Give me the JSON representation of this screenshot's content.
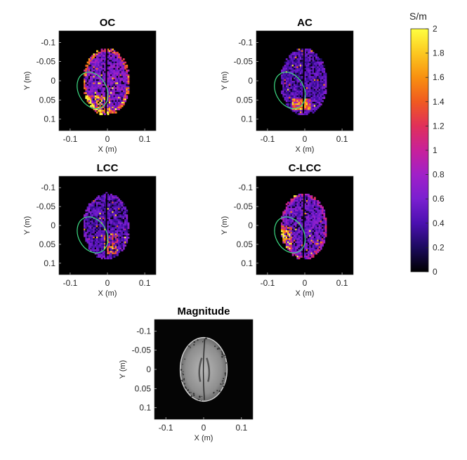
{
  "chart_data": [
    {
      "type": "heatmap",
      "title": "OC",
      "xlabel": "X (m)",
      "ylabel": "Y (m)",
      "xlim": [
        -0.13,
        0.13
      ],
      "ylim": [
        0.13,
        -0.13
      ],
      "xticks": [
        -0.1,
        0,
        0.1
      ],
      "xtick_labels": [
        "-0.1",
        "0",
        "0.1"
      ],
      "yticks": [
        -0.1,
        -0.05,
        0,
        0.05,
        0.1
      ],
      "ytick_labels": [
        "-0.1",
        "-0.05",
        "0",
        "0.05",
        "0.1"
      ],
      "colormap": "conductivity",
      "clim": [
        0,
        2
      ],
      "has_roi_ellipse": true,
      "roi_color": "#3ddc84",
      "seed": 11,
      "mean_level": 0.62,
      "edge_boost": 0.9,
      "hot_region": "roi-lower"
    },
    {
      "type": "heatmap",
      "title": "AC",
      "xlabel": "X (m)",
      "ylabel": "Y (m)",
      "xlim": [
        -0.13,
        0.13
      ],
      "ylim": [
        0.13,
        -0.13
      ],
      "xticks": [
        -0.1,
        0,
        0.1
      ],
      "xtick_labels": [
        "-0.1",
        "0",
        "0.1"
      ],
      "yticks": [
        -0.1,
        -0.05,
        0,
        0.05,
        0.1
      ],
      "ytick_labels": [
        "-0.1",
        "-0.05",
        "0",
        "0.05",
        "0.1"
      ],
      "colormap": "conductivity",
      "clim": [
        0,
        2
      ],
      "has_roi_ellipse": true,
      "roi_color": "#3ddc84",
      "seed": 23,
      "mean_level": 0.45,
      "edge_boost": 0.1,
      "hot_region": "center-bottom"
    },
    {
      "type": "heatmap",
      "title": "LCC",
      "xlabel": "X (m)",
      "ylabel": "Y (m)",
      "xlim": [
        -0.13,
        0.13
      ],
      "ylim": [
        0.13,
        -0.13
      ],
      "xticks": [
        -0.1,
        0,
        0.1
      ],
      "xtick_labels": [
        "-0.1",
        "0",
        "0.1"
      ],
      "yticks": [
        -0.1,
        -0.05,
        0,
        0.05,
        0.1
      ],
      "ytick_labels": [
        "-0.1",
        "-0.05",
        "0",
        "0.05",
        "0.1"
      ],
      "colormap": "conductivity",
      "clim": [
        0,
        2
      ],
      "has_roi_ellipse": true,
      "roi_color": "#3ddc84",
      "seed": 37,
      "mean_level": 0.45,
      "edge_boost": 0.15,
      "hot_region": "roi-right"
    },
    {
      "type": "heatmap",
      "title": "C-LCC",
      "xlabel": "X (m)",
      "ylabel": "Y (m)",
      "xlim": [
        -0.13,
        0.13
      ],
      "ylim": [
        0.13,
        -0.13
      ],
      "xticks": [
        -0.1,
        0,
        0.1
      ],
      "xtick_labels": [
        "-0.1",
        "0",
        "0.1"
      ],
      "yticks": [
        -0.1,
        -0.05,
        0,
        0.05,
        0.1
      ],
      "ytick_labels": [
        "-0.1",
        "-0.05",
        "0",
        "0.05",
        "0.1"
      ],
      "colormap": "conductivity",
      "clim": [
        0,
        2
      ],
      "has_roi_ellipse": true,
      "roi_color": "#3ddc84",
      "seed": 53,
      "mean_level": 0.55,
      "edge_boost": 0.45,
      "hot_region": "roi-left"
    },
    {
      "type": "heatmap",
      "title": "Magnitude",
      "xlabel": "X (m)",
      "ylabel": "Y (m)",
      "xlim": [
        -0.13,
        0.13
      ],
      "ylim": [
        0.13,
        -0.13
      ],
      "xticks": [
        -0.1,
        0,
        0.1
      ],
      "xtick_labels": [
        "-0.1",
        "0",
        "0.1"
      ],
      "yticks": [
        -0.1,
        -0.05,
        0,
        0.05,
        0.1
      ],
      "ytick_labels": [
        "-0.1",
        "-0.05",
        "0",
        "0.05",
        "0.1"
      ],
      "colormap": "gray",
      "has_roi_ellipse": false
    }
  ],
  "colorbar": {
    "unit": "S/m",
    "range": [
      0,
      2
    ],
    "ticks": [
      "0",
      "0.2",
      "0.4",
      "0.6",
      "0.8",
      "1",
      "1.2",
      "1.4",
      "1.6",
      "1.8",
      "2"
    ],
    "colors": [
      "#000000",
      "#1c0a5e",
      "#4b10b0",
      "#7a1fd0",
      "#a020c8",
      "#c8209a",
      "#e0305a",
      "#f05a20",
      "#f89010",
      "#fcc820",
      "#ffff40"
    ]
  }
}
